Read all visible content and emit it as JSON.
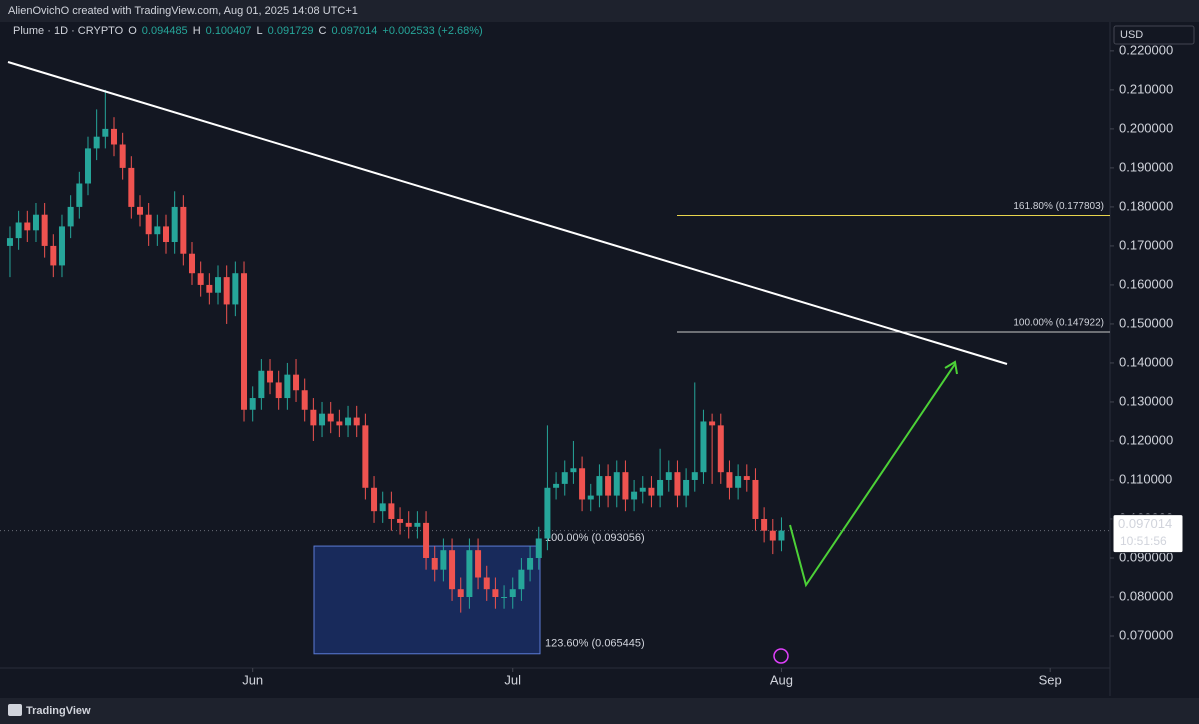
{
  "header": {
    "attribution": "AlienOvichO created with TradingView.com, Aug 01, 2025 14:08 UTC+1",
    "brand": "TradingView"
  },
  "chart_data": {
    "type": "candlestick",
    "symbol": "Plume · 1D · CRYPTO",
    "ohlc_legend": [
      {
        "label": "O",
        "value": "0.094485"
      },
      {
        "label": "H",
        "value": "0.100407"
      },
      {
        "label": "L",
        "value": "0.091729"
      },
      {
        "label": "C",
        "value": "0.097014"
      }
    ],
    "change": "+0.002533 (+2.68%)",
    "currency": "USD",
    "up_color": "#26a69a",
    "down_color": "#ef5350",
    "open": [
      0.17,
      0.172,
      0.176,
      0.174,
      0.178,
      0.17,
      0.165,
      0.175,
      0.18,
      0.186,
      0.195,
      0.198,
      0.2,
      0.196,
      0.19,
      0.18,
      0.178,
      0.173,
      0.175,
      0.171,
      0.18,
      0.168,
      0.163,
      0.16,
      0.158,
      0.162,
      0.155,
      0.163,
      0.128,
      0.131,
      0.138,
      0.135,
      0.131,
      0.137,
      0.133,
      0.128,
      0.124,
      0.127,
      0.125,
      0.124,
      0.126,
      0.124,
      0.108,
      0.102,
      0.104,
      0.1,
      0.099,
      0.098,
      0.099,
      0.09,
      0.087,
      0.092,
      0.082,
      0.08,
      0.092,
      0.085,
      0.082,
      0.08,
      0.08,
      0.082,
      0.087,
      0.09,
      0.095,
      0.108,
      0.109,
      0.112,
      0.113,
      0.105,
      0.106,
      0.111,
      0.106,
      0.112,
      0.105,
      0.107,
      0.108,
      0.106,
      0.11,
      0.112,
      0.106,
      0.11,
      0.112,
      0.125,
      0.124,
      0.112,
      0.108,
      0.111,
      0.11,
      0.1,
      0.097,
      0.094485
    ],
    "high": [
      0.175,
      0.179,
      0.179,
      0.181,
      0.181,
      0.173,
      0.178,
      0.183,
      0.189,
      0.198,
      0.205,
      0.21,
      0.203,
      0.199,
      0.193,
      0.183,
      0.181,
      0.178,
      0.178,
      0.184,
      0.183,
      0.171,
      0.166,
      0.163,
      0.165,
      0.165,
      0.166,
      0.166,
      0.134,
      0.141,
      0.141,
      0.138,
      0.14,
      0.141,
      0.136,
      0.131,
      0.13,
      0.13,
      0.128,
      0.129,
      0.129,
      0.127,
      0.111,
      0.107,
      0.107,
      0.103,
      0.102,
      0.102,
      0.102,
      0.093,
      0.095,
      0.095,
      0.085,
      0.095,
      0.095,
      0.088,
      0.085,
      0.083,
      0.085,
      0.09,
      0.093,
      0.098,
      0.124,
      0.112,
      0.115,
      0.12,
      0.116,
      0.109,
      0.114,
      0.114,
      0.115,
      0.115,
      0.11,
      0.111,
      0.111,
      0.118,
      0.115,
      0.115,
      0.113,
      0.135,
      0.128,
      0.127,
      0.127,
      0.115,
      0.114,
      0.114,
      0.113,
      0.103,
      0.1,
      0.100407
    ],
    "low": [
      0.162,
      0.169,
      0.171,
      0.171,
      0.167,
      0.162,
      0.162,
      0.172,
      0.177,
      0.183,
      0.192,
      0.195,
      0.193,
      0.187,
      0.177,
      0.175,
      0.17,
      0.17,
      0.168,
      0.168,
      0.165,
      0.16,
      0.157,
      0.155,
      0.155,
      0.15,
      0.152,
      0.125,
      0.125,
      0.128,
      0.132,
      0.128,
      0.128,
      0.13,
      0.125,
      0.12,
      0.121,
      0.122,
      0.121,
      0.121,
      0.121,
      0.105,
      0.099,
      0.099,
      0.097,
      0.096,
      0.095,
      0.095,
      0.087,
      0.084,
      0.084,
      0.079,
      0.076,
      0.077,
      0.082,
      0.079,
      0.077,
      0.077,
      0.077,
      0.079,
      0.084,
      0.087,
      0.092,
      0.105,
      0.106,
      0.109,
      0.102,
      0.102,
      0.103,
      0.103,
      0.103,
      0.102,
      0.102,
      0.104,
      0.103,
      0.103,
      0.107,
      0.103,
      0.103,
      0.107,
      0.109,
      0.109,
      0.109,
      0.105,
      0.105,
      0.107,
      0.097,
      0.094,
      0.091,
      0.091729
    ],
    "close": [
      0.172,
      0.176,
      0.174,
      0.178,
      0.17,
      0.165,
      0.175,
      0.18,
      0.186,
      0.195,
      0.198,
      0.2,
      0.196,
      0.19,
      0.18,
      0.178,
      0.173,
      0.175,
      0.171,
      0.18,
      0.168,
      0.163,
      0.16,
      0.158,
      0.162,
      0.155,
      0.163,
      0.128,
      0.131,
      0.138,
      0.135,
      0.131,
      0.137,
      0.133,
      0.128,
      0.124,
      0.127,
      0.125,
      0.124,
      0.126,
      0.124,
      0.108,
      0.102,
      0.104,
      0.1,
      0.099,
      0.098,
      0.099,
      0.09,
      0.087,
      0.092,
      0.082,
      0.08,
      0.092,
      0.085,
      0.082,
      0.08,
      0.08,
      0.082,
      0.087,
      0.09,
      0.095,
      0.108,
      0.109,
      0.112,
      0.113,
      0.105,
      0.106,
      0.111,
      0.106,
      0.112,
      0.105,
      0.107,
      0.108,
      0.106,
      0.11,
      0.112,
      0.106,
      0.11,
      0.112,
      0.125,
      0.124,
      0.112,
      0.108,
      0.111,
      0.11,
      0.1,
      0.097,
      0.094481,
      0.097014
    ],
    "xlim": [
      -1.15,
      126.9
    ],
    "xticks": [
      {
        "value": 28,
        "label": "Jun"
      },
      {
        "value": 58,
        "label": "Jul"
      },
      {
        "value": 89,
        "label": "Aug"
      },
      {
        "value": 120,
        "label": "Sep"
      }
    ],
    "ylim": [
      0.0618,
      0.2274
    ],
    "yticks": [
      {
        "value": 0.07,
        "label": "0.070000"
      },
      {
        "value": 0.08,
        "label": "0.080000"
      },
      {
        "value": 0.09,
        "label": "0.090000"
      },
      {
        "value": 0.1,
        "label": "0.100000"
      },
      {
        "value": 0.11,
        "label": "0.110000"
      },
      {
        "value": 0.12,
        "label": "0.120000"
      },
      {
        "value": 0.13,
        "label": "0.130000"
      },
      {
        "value": 0.14,
        "label": "0.140000"
      },
      {
        "value": 0.15,
        "label": "0.150000"
      },
      {
        "value": 0.16,
        "label": "0.160000"
      },
      {
        "value": 0.17,
        "label": "0.170000"
      },
      {
        "value": 0.18,
        "label": "0.180000"
      },
      {
        "value": 0.19,
        "label": "0.190000"
      },
      {
        "value": 0.2,
        "label": "0.200000"
      },
      {
        "value": 0.21,
        "label": "0.210000"
      },
      {
        "value": 0.22,
        "label": "0.220000"
      }
    ],
    "grid": false,
    "fib_levels": [
      {
        "value": 0.177803,
        "label": "161.80% (0.177803)",
        "color": "#e8d44d"
      },
      {
        "value": 0.147922,
        "label": "100.00% (0.147922)",
        "color": "#c8c8c8"
      }
    ],
    "zone": {
      "top": 0.093056,
      "bottom": 0.065445,
      "top_label": "100.00% (0.093056)",
      "bottom_label": "123.60% (0.065445)",
      "color": "#1e3a8a"
    },
    "last_price": 0.097014,
    "countdown": "10:51:56"
  }
}
